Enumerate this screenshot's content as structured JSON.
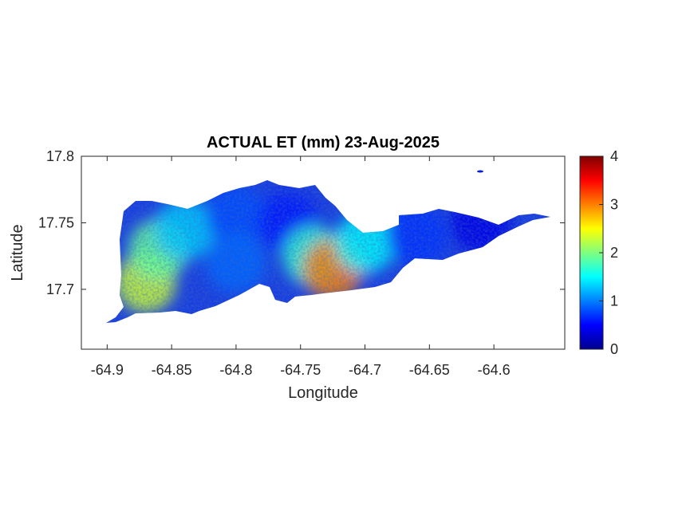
{
  "chart_data": {
    "type": "heatmap",
    "title": "ACTUAL ET (mm) 23-Aug-2025",
    "xlabel": "Longitude",
    "ylabel": "Latitude",
    "xlim": [
      -64.92,
      -64.545
    ],
    "ylim": [
      17.655,
      17.8
    ],
    "xticks": [
      -64.9,
      -64.85,
      -64.8,
      -64.75,
      -64.7,
      -64.65,
      -64.6
    ],
    "xtick_labels": [
      "-64.9",
      "-64.85",
      "-64.8",
      "-64.75",
      "-64.7",
      "-64.65",
      "-64.6"
    ],
    "yticks": [
      17.7,
      17.75,
      17.8
    ],
    "ytick_labels": [
      "17.7",
      "17.75",
      "17.8"
    ],
    "grid": false,
    "colormap": "jet",
    "colorbar": {
      "location": "right",
      "range": [
        0,
        4
      ],
      "ticks": [
        0,
        1,
        2,
        3,
        4
      ],
      "tick_labels": [
        "0",
        "1",
        "2",
        "3",
        "4"
      ]
    },
    "data_regions": [
      {
        "lon": -64.87,
        "lat": 17.705,
        "value": 2.3
      },
      {
        "lon": -64.86,
        "lat": 17.73,
        "value": 1.9
      },
      {
        "lon": -64.84,
        "lat": 17.745,
        "value": 1.3
      },
      {
        "lon": -64.8,
        "lat": 17.755,
        "value": 0.8
      },
      {
        "lon": -64.8,
        "lat": 17.72,
        "value": 0.9
      },
      {
        "lon": -64.76,
        "lat": 17.75,
        "value": 0.6
      },
      {
        "lon": -64.74,
        "lat": 17.725,
        "value": 1.7
      },
      {
        "lon": -64.725,
        "lat": 17.715,
        "value": 3.0
      },
      {
        "lon": -64.7,
        "lat": 17.735,
        "value": 1.5
      },
      {
        "lon": -64.66,
        "lat": 17.74,
        "value": 0.7
      },
      {
        "lon": -64.61,
        "lat": 17.75,
        "value": 0.4
      }
    ]
  }
}
